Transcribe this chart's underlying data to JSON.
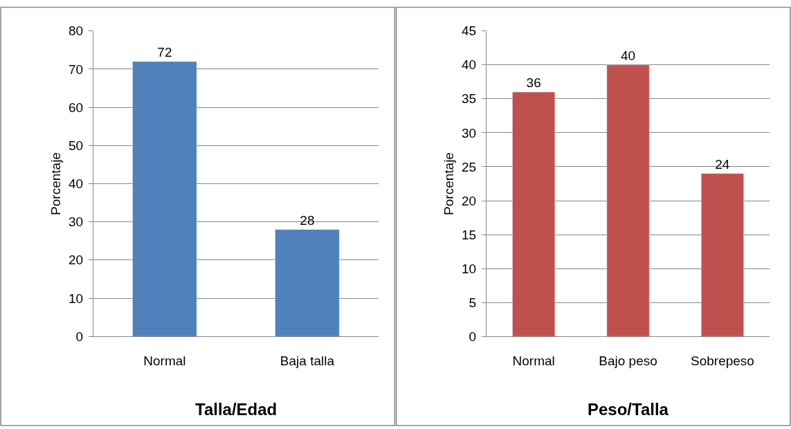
{
  "chart_data": [
    {
      "type": "bar",
      "title": "Talla/Edad",
      "ylabel": "Porcentaje",
      "categories": [
        "Normal",
        "Baja talla"
      ],
      "values": [
        72,
        28
      ],
      "color": "#4f81bd",
      "ylim": [
        0,
        80
      ],
      "yticks": [
        0,
        10,
        20,
        30,
        40,
        50,
        60,
        70,
        80
      ],
      "grid": "y",
      "data_labels": true
    },
    {
      "type": "bar",
      "title": "Peso/Talla",
      "ylabel": "Porcentaje",
      "categories": [
        "Normal",
        "Bajo peso",
        "Sobrepeso"
      ],
      "values": [
        36,
        40,
        24
      ],
      "color": "#c0504d",
      "ylim": [
        0,
        45
      ],
      "yticks": [
        0,
        5,
        10,
        15,
        20,
        25,
        30,
        35,
        40,
        45
      ],
      "grid": "y",
      "data_labels": true
    }
  ]
}
